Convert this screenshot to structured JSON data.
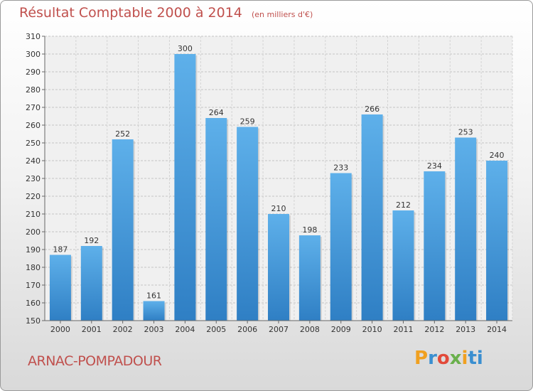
{
  "header": {
    "title": "Résultat Comptable 2000 à 2014",
    "subtitle": "(en milliers d'€)"
  },
  "footer": {
    "commune": "ARNAC-POMPADOUR",
    "brand": [
      "P",
      "r",
      "o",
      "x",
      "i",
      "ti"
    ]
  },
  "chart_data": {
    "type": "bar",
    "title": "Résultat Comptable 2000 à 2014",
    "unit": "(en milliers d'€)",
    "categories": [
      "2000",
      "2001",
      "2002",
      "2003",
      "2004",
      "2005",
      "2006",
      "2007",
      "2008",
      "2009",
      "2010",
      "2011",
      "2012",
      "2013",
      "2014"
    ],
    "values": [
      187,
      192,
      252,
      161,
      300,
      264,
      259,
      210,
      198,
      233,
      266,
      212,
      234,
      253,
      240
    ],
    "ylim": [
      150,
      310
    ],
    "yticks": [
      150,
      160,
      170,
      180,
      190,
      200,
      210,
      220,
      230,
      240,
      250,
      260,
      270,
      280,
      290,
      300,
      310
    ],
    "grid": true,
    "colors": {
      "bar_top": "#5eb0ea",
      "bar_bottom": "#2f7fc4",
      "title": "#c0504d"
    }
  }
}
